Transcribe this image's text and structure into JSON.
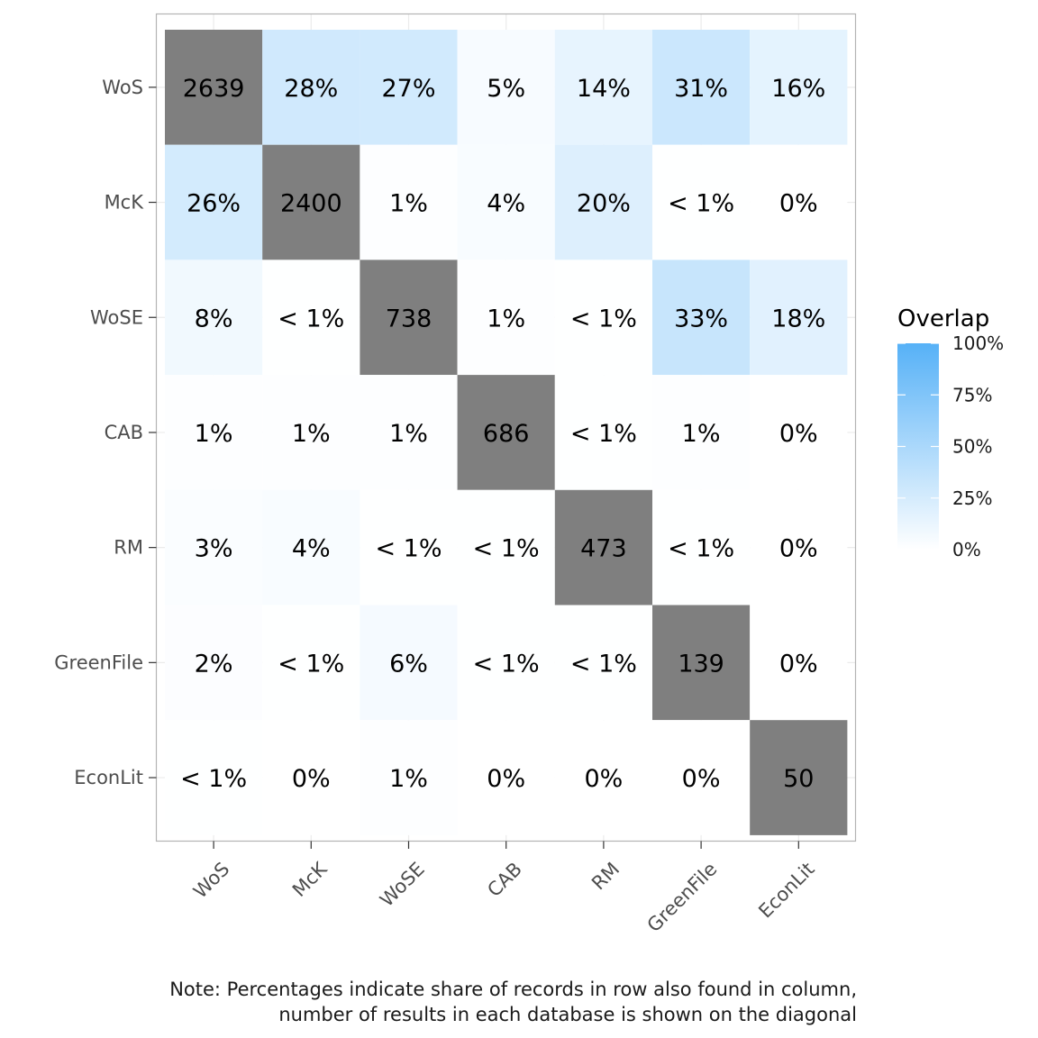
{
  "chart_data": {
    "type": "heatmap",
    "title": "",
    "xlabel": "",
    "ylabel": "",
    "rows": [
      "WoS",
      "McK",
      "WoSE",
      "CAB",
      "RM",
      "GreenFile",
      "EconLit"
    ],
    "columns": [
      "WoS",
      "McK",
      "WoSE",
      "CAB",
      "RM",
      "GreenFile",
      "EconLit"
    ],
    "labels": [
      [
        "2639",
        "28%",
        "27%",
        "5%",
        "14%",
        "31%",
        "16%"
      ],
      [
        "26%",
        "2400",
        "1%",
        "4%",
        "20%",
        "< 1%",
        "0%"
      ],
      [
        "8%",
        "< 1%",
        "738",
        "1%",
        "< 1%",
        "33%",
        "18%"
      ],
      [
        "1%",
        "1%",
        "1%",
        "686",
        "< 1%",
        "1%",
        "0%"
      ],
      [
        "3%",
        "4%",
        "< 1%",
        "< 1%",
        "473",
        "< 1%",
        "0%"
      ],
      [
        "2%",
        "< 1%",
        "6%",
        "< 1%",
        "< 1%",
        "139",
        "0%"
      ],
      [
        "< 1%",
        "0%",
        "1%",
        "0%",
        "0%",
        "0%",
        "50"
      ]
    ],
    "overlap_percent": [
      [
        null,
        28,
        27,
        5,
        14,
        31,
        16
      ],
      [
        26,
        null,
        1,
        4,
        20,
        0.5,
        0
      ],
      [
        8,
        0.5,
        null,
        1,
        0.5,
        33,
        18
      ],
      [
        1,
        1,
        1,
        null,
        0.5,
        1,
        0
      ],
      [
        3,
        4,
        0.5,
        0.5,
        null,
        0.5,
        0
      ],
      [
        2,
        0.5,
        6,
        0.5,
        0.5,
        null,
        0
      ],
      [
        0.5,
        0,
        1,
        0,
        0,
        0,
        null
      ]
    ],
    "diagonal_counts": [
      2639,
      2400,
      738,
      686,
      473,
      139,
      50
    ],
    "diagonal_color": "#7f7f7f",
    "legend": {
      "title": "Overlap",
      "ticks": [
        "100%",
        "75%",
        "50%",
        "25%",
        "0%"
      ],
      "tick_values": [
        100,
        75,
        50,
        25,
        0
      ],
      "color_low": "#ffffff",
      "color_high": "#56b1f7",
      "position": "right"
    },
    "grid": true
  },
  "note": {
    "line1": "Note: Percentages indicate share of records in row also found in column,",
    "line2": "number of results in each database is shown on the diagonal"
  }
}
